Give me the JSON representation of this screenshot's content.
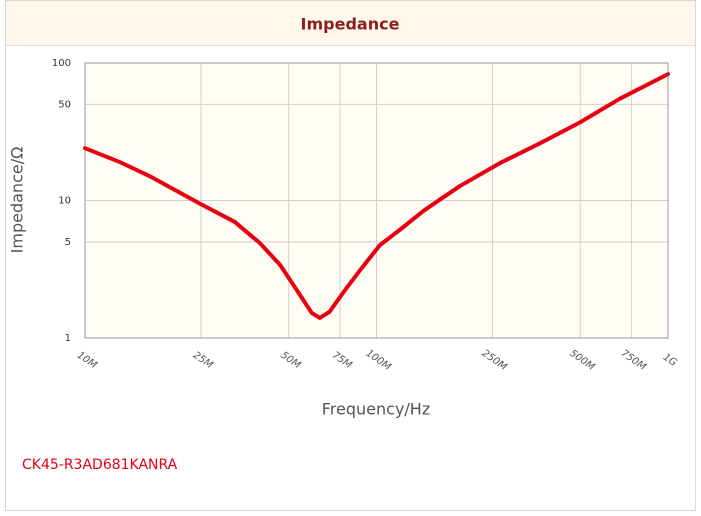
{
  "chart_data": {
    "type": "line",
    "title": "Impedance",
    "xlabel": "Frequency/Hz",
    "ylabel": "Impedance/Ω",
    "xscale": "log",
    "yscale": "log",
    "grid": true,
    "color": "#e60012",
    "x": [
      10000000,
      13200000,
      16700000,
      25000000,
      32600000,
      39800000,
      46700000,
      54700000,
      60000000,
      63900000,
      69000000,
      78000000,
      87700000,
      102800000,
      120000000,
      146000000,
      193000000,
      265000000,
      363000000,
      499000000,
      684000000,
      1000000000
    ],
    "values": [
      24,
      19,
      15,
      9.4,
      7.0,
      4.9,
      3.4,
      2.05,
      1.52,
      1.4,
      1.55,
      2.23,
      3.1,
      4.75,
      6.1,
      8.5,
      12.7,
      18.7,
      26,
      37,
      55,
      83
    ],
    "xlim": [
      10000000,
      1000000000
    ],
    "xticks": [
      {
        "value": 10000000,
        "label": "10M"
      },
      {
        "value": 25000000,
        "label": "25M"
      },
      {
        "value": 50000000,
        "label": "50M"
      },
      {
        "value": 75000000,
        "label": "75M"
      },
      {
        "value": 100000000,
        "label": "100M"
      },
      {
        "value": 250000000,
        "label": "250M"
      },
      {
        "value": 500000000,
        "label": "500M"
      },
      {
        "value": 750000000,
        "label": "750M"
      },
      {
        "value": 1000000000,
        "label": "1G"
      }
    ],
    "ylim": [
      1,
      100
    ],
    "yticks": [
      1,
      5,
      10,
      50,
      100
    ]
  },
  "caption": "CK45-R3AD681KANRA"
}
